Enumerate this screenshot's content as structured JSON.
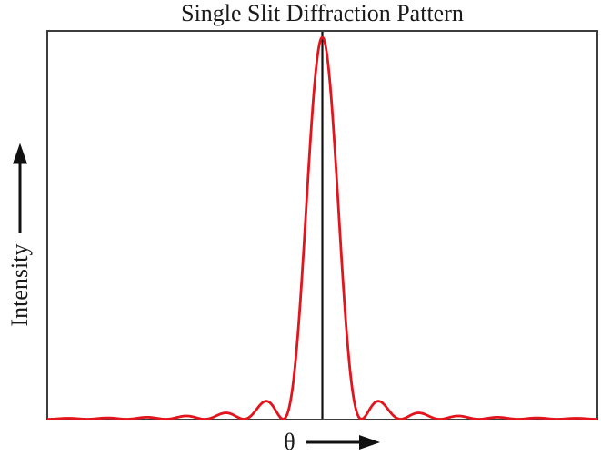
{
  "title": "Single Slit Diffraction Pattern",
  "y_axis": {
    "label": "Intensity",
    "arrow": "up-arrow"
  },
  "x_axis": {
    "label": "θ",
    "arrow": "right-arrow"
  },
  "colors": {
    "curve": "#e3141c",
    "center_line": "#111111",
    "frame": "#3d3d3d",
    "background": "#ffffff",
    "text": "#1a1a1a"
  },
  "chart_data": {
    "type": "line",
    "title": "Single Slit Diffraction Pattern",
    "xlabel": "θ",
    "ylabel": "Intensity",
    "grid": false,
    "ticks": "none",
    "legend": "none",
    "center_line_x": 0,
    "ylim": [
      0,
      1.02
    ],
    "series": [
      {
        "name": "intensity",
        "function": "sinc_squared",
        "formula": "I(x) = (sin(pi*x)/(pi*x))^2",
        "x_min": -7,
        "x_max": 7,
        "samples": 701,
        "peak": {
          "x": 0,
          "intensity": 1.0
        },
        "minima_x": [
          -7,
          -6,
          -5,
          -4,
          -3,
          -2,
          -1,
          1,
          2,
          3,
          4,
          5,
          6,
          7
        ],
        "key_points": [
          {
            "x": -6.48,
            "i": 0.0024
          },
          {
            "x": -5.48,
            "i": 0.0033
          },
          {
            "x": -4.48,
            "i": 0.005
          },
          {
            "x": -3.47,
            "i": 0.0083
          },
          {
            "x": -2.46,
            "i": 0.0165
          },
          {
            "x": -1.43,
            "i": 0.0472
          },
          {
            "x": -0.5,
            "i": 0.4053
          },
          {
            "x": 0,
            "i": 1.0
          },
          {
            "x": 0.5,
            "i": 0.4053
          },
          {
            "x": 1.43,
            "i": 0.0472
          },
          {
            "x": 2.46,
            "i": 0.0165
          },
          {
            "x": 3.47,
            "i": 0.0083
          },
          {
            "x": 4.48,
            "i": 0.005
          },
          {
            "x": 5.48,
            "i": 0.0033
          },
          {
            "x": 6.48,
            "i": 0.0024
          }
        ]
      }
    ]
  }
}
